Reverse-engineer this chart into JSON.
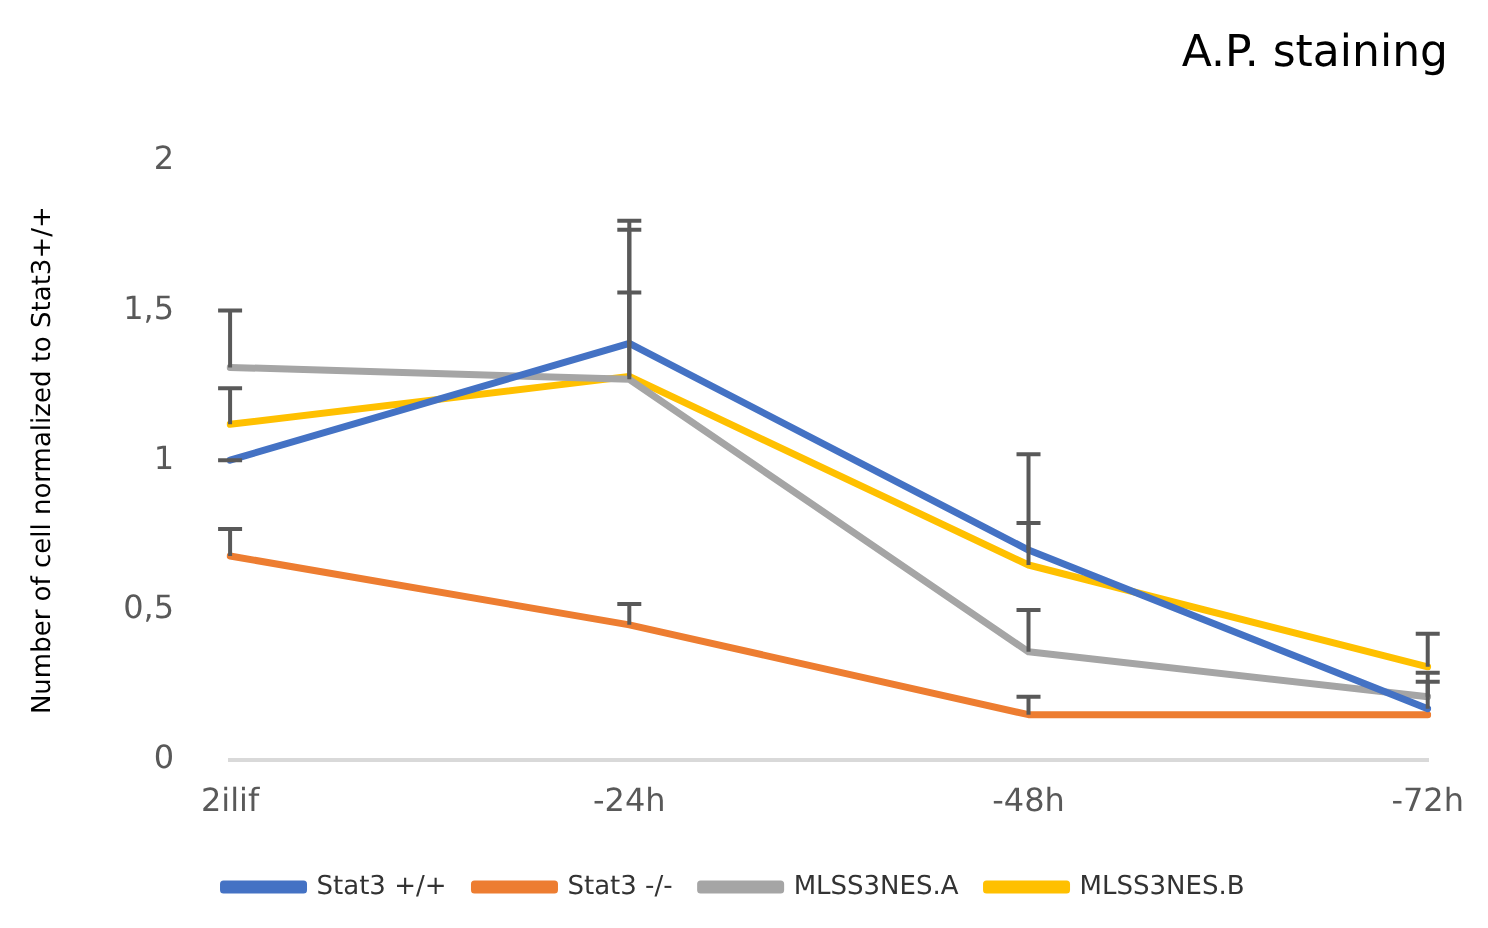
{
  "chart_data": {
    "type": "line",
    "title": "A.P. staining",
    "ylabel": "Number of cell normalized to Stat3+/+",
    "categories": [
      "2ilif",
      "-24h",
      "-48h",
      "-72h"
    ],
    "series": [
      {
        "name": "Stat3 +/+",
        "color": "#4472c4",
        "values": [
          1.0,
          1.39,
          0.7,
          0.17
        ],
        "errors": [
          [
            1.0,
            1.0
          ],
          [
            1.39,
            1.8
          ],
          [
            0.7,
            1.02
          ],
          [
            0.17,
            0.29
          ]
        ]
      },
      {
        "name": "Stat3 -/-",
        "color": "#ed7d31",
        "values": [
          0.68,
          0.45,
          0.15,
          0.15
        ],
        "errors": [
          [
            0.68,
            0.77
          ],
          [
            0.45,
            0.52
          ],
          [
            0.15,
            0.21
          ],
          null
        ]
      },
      {
        "name": "MLSS3NES.A",
        "color": "#a5a5a5",
        "values": [
          1.31,
          1.27,
          0.36,
          0.21
        ],
        "errors": [
          [
            1.31,
            1.5
          ],
          [
            1.27,
            1.77
          ],
          [
            0.36,
            0.5
          ],
          [
            0.21,
            0.26
          ]
        ]
      },
      {
        "name": "MLSS3NES.B",
        "color": "#ffc000",
        "values": [
          1.12,
          1.28,
          0.65,
          0.31
        ],
        "errors": [
          [
            1.12,
            1.24
          ],
          [
            1.28,
            1.56
          ],
          [
            0.65,
            0.79
          ],
          [
            0.31,
            0.42
          ]
        ]
      }
    ],
    "ylim": [
      0,
      2
    ],
    "yticks": [
      0,
      {
        "value": 0.5,
        "label": "0,5"
      },
      1,
      {
        "value": 1.5,
        "label": "1,5"
      },
      2
    ],
    "grid": false,
    "legend": "bottom",
    "line_style": "solid"
  }
}
